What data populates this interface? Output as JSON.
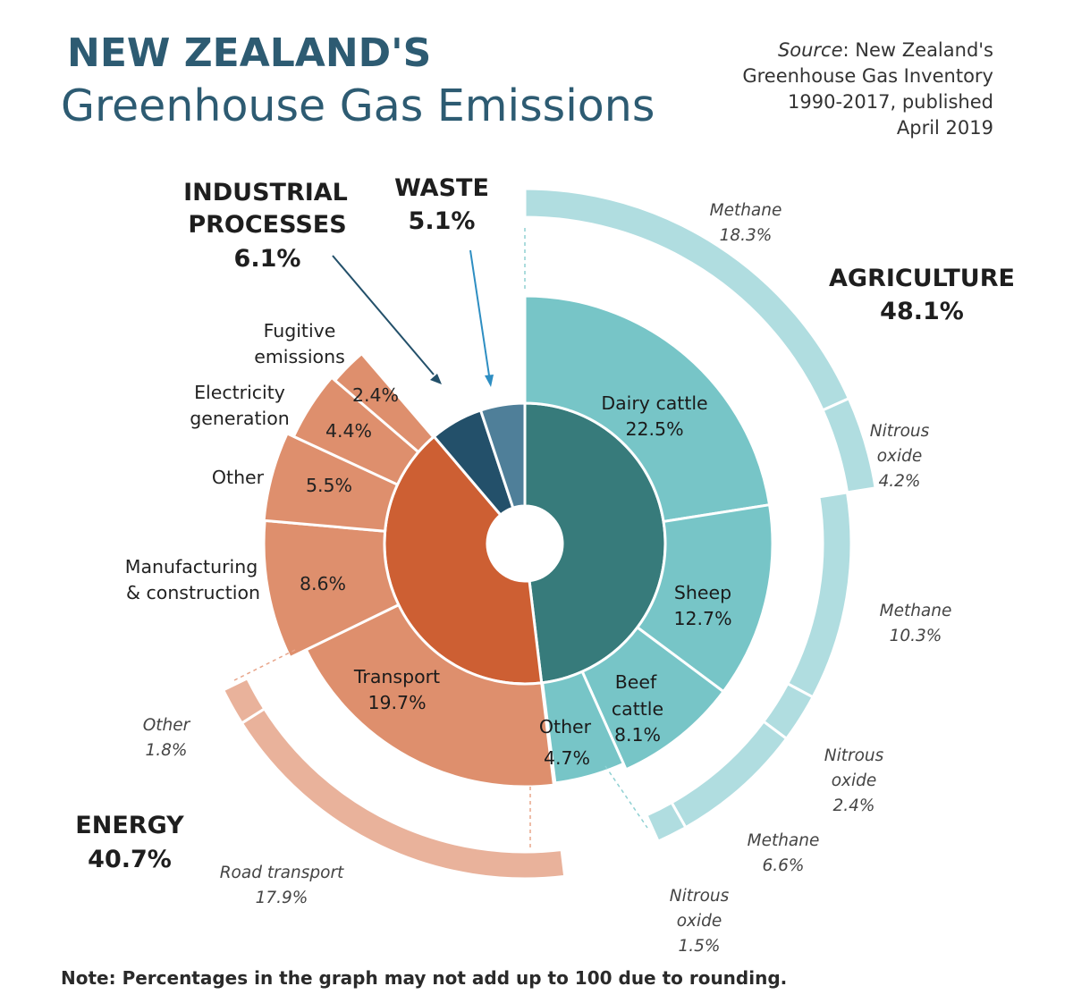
{
  "title": {
    "line1": "NEW ZEALAND'S",
    "line2": "Greenhouse Gas Emissions"
  },
  "source": {
    "prefix": "Source",
    "line1": ": New Zealand's",
    "line2": "Greenhouse Gas Inventory",
    "line3": "1990-2017, published",
    "line4": "April 2019"
  },
  "note": "Note: Percentages in the graph may not add up to 100 due to rounding.",
  "colors": {
    "energy_main": "#cd5f33",
    "energy_sub": "#de8f6d",
    "energy_outer": "#e9b29b",
    "agri_main": "#377b7b",
    "agri_sub": "#77c5c7",
    "agri_outer": "#b0dde0",
    "industrial": "#23506a",
    "waste": "#4f7f99"
  },
  "chart_data": {
    "type": "sunburst",
    "unit": "% of total emissions",
    "sectors": [
      {
        "key": "agriculture",
        "label": "AGRICULTURE",
        "value": 48.1,
        "value_label": "48.1%",
        "subsectors": [
          {
            "key": "dairy",
            "label": "Dairy cattle",
            "value": 22.5,
            "value_label": "22.5%",
            "gases": [
              {
                "label": "Methane",
                "value": 18.3,
                "value_label": "18.3%"
              },
              {
                "label": "Nitrous oxide",
                "value": 4.2,
                "value_label": "4.2%"
              }
            ]
          },
          {
            "key": "sheep",
            "label": "Sheep",
            "value": 12.7,
            "value_label": "12.7%",
            "gases": [
              {
                "label": "Methane",
                "value": 10.3,
                "value_label": "10.3%"
              },
              {
                "label": "Nitrous oxide",
                "value": 2.4,
                "value_label": "2.4%"
              }
            ]
          },
          {
            "key": "beef",
            "label": "Beef cattle",
            "value": 8.1,
            "value_label": "8.1%",
            "gases": [
              {
                "label": "Methane",
                "value": 6.6,
                "value_label": "6.6%"
              },
              {
                "label": "Nitrous oxide",
                "value": 1.5,
                "value_label": "1.5%"
              }
            ]
          },
          {
            "key": "agri_other",
            "label": "Other",
            "value": 4.7,
            "value_label": "4.7%",
            "gases": []
          }
        ]
      },
      {
        "key": "energy",
        "label": "ENERGY",
        "value": 40.7,
        "value_label": "40.7%",
        "subsectors": [
          {
            "key": "transport",
            "label": "Transport",
            "value": 19.7,
            "value_label": "19.7%",
            "breakdown": [
              {
                "label": "Road transport",
                "value": 17.9,
                "value_label": "17.9%"
              },
              {
                "label": "Other",
                "value": 1.8,
                "value_label": "1.8%"
              }
            ]
          },
          {
            "key": "manufacturing",
            "label": "Manufacturing & construction",
            "value": 8.6,
            "value_label": "8.6%"
          },
          {
            "key": "energy_other",
            "label": "Other",
            "value": 5.5,
            "value_label": "5.5%"
          },
          {
            "key": "electricity",
            "label": "Electricity generation",
            "value": 4.4,
            "value_label": "4.4%"
          },
          {
            "key": "fugitive",
            "label": "Fugitive emissions",
            "value": 2.4,
            "value_label": "2.4%"
          }
        ]
      },
      {
        "key": "industrial",
        "label": "INDUSTRIAL PROCESSES",
        "value": 6.1,
        "value_label": "6.1%"
      },
      {
        "key": "waste",
        "label": "WASTE",
        "value": 5.1,
        "value_label": "5.1%"
      }
    ]
  },
  "labels": {
    "industrial_l1": "INDUSTRIAL",
    "industrial_l2": "PROCESSES",
    "dairy_l1": "Dairy cattle",
    "beef_l1": "Beef",
    "beef_l2": "cattle",
    "fugitive_l1": "Fugitive",
    "fugitive_l2": "emissions",
    "electricity_l1": "Electricity",
    "electricity_l2": "generation",
    "manufacturing_l1": "Manufacturing",
    "manufacturing_l2": "& construction",
    "nitrous_l1": "Nitrous",
    "nitrous_l2": "oxide",
    "road_transport": "Road transport"
  }
}
